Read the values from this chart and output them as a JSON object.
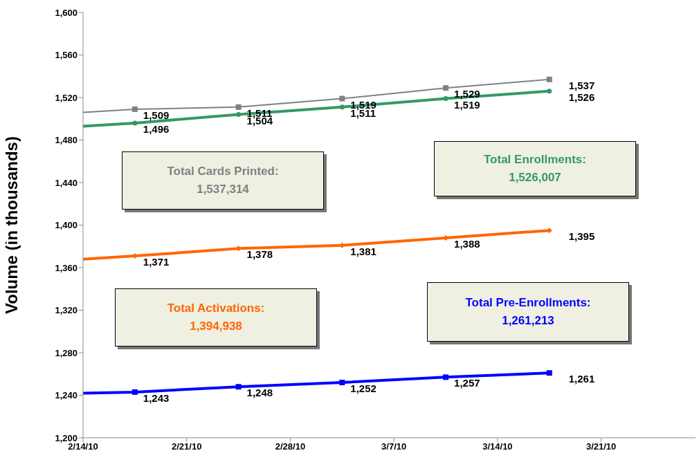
{
  "chart_data": {
    "type": "line",
    "ylabel": "Volume (in thousands)",
    "x": [
      "--02-14",
      "--02-17T12:00",
      "--02-24T12:00",
      "--03-03T12:00",
      "--03-10T12:00",
      "--03-17T12:00"
    ],
    "series": [
      {
        "color": "#808080",
        "marker": "square",
        "values": [
          1506,
          1509,
          1511,
          1519,
          1529,
          1537
        ],
        "value_labels": [
          null,
          "1,509",
          "1,511",
          "1,519",
          "1,529",
          "1,537"
        ]
      },
      {
        "color": "#339966",
        "marker": "circle",
        "values": [
          1493,
          1496,
          1504,
          1511,
          1519,
          1526
        ],
        "value_labels": [
          null,
          "1,496",
          "1,504",
          "1,511",
          "1,519",
          "1,526"
        ]
      },
      {
        "color": "#ff6600",
        "marker": "diamond",
        "values": [
          1368,
          1371,
          1378,
          1381,
          1388,
          1395
        ],
        "value_labels": [
          null,
          "1,371",
          "1,378",
          "1,381",
          "1,388",
          "1,395"
        ]
      },
      {
        "color": "#0000ff",
        "marker": "square",
        "values": [
          1242,
          1243,
          1248,
          1252,
          1257,
          1261
        ],
        "value_labels": [
          null,
          "1,243",
          "1,248",
          "1,252",
          "1,257",
          "1,261"
        ]
      }
    ],
    "annotations": [
      "Total Cards Printed:\n1,537,314",
      "Total Enrollments:\n1,526,007",
      "Total Activations:\n1,394,938",
      "Total Pre-Enrollments:\n1,261,213"
    ],
    "xlim": [
      "--02-14",
      "--03-27T09:00"
    ],
    "xticks": [
      {
        "value": "--02-14",
        "label": "2/14/10"
      },
      {
        "value": "--02-21",
        "label": "2/21/10"
      },
      {
        "value": "--02-28",
        "label": "2/28/10"
      },
      {
        "value": "--03-07",
        "label": "3/7/10"
      },
      {
        "value": "--03-14",
        "label": "3/14/10"
      },
      {
        "value": "--03-21",
        "label": "3/21/10"
      }
    ],
    "ylim": [
      1200,
      1600
    ],
    "yticks": [
      {
        "value": 1200,
        "label": "1,200"
      },
      {
        "value": 1240,
        "label": "1,240"
      },
      {
        "value": 1280,
        "label": "1,280"
      },
      {
        "value": 1320,
        "label": "1,320"
      },
      {
        "value": 1360,
        "label": "1,360"
      },
      {
        "value": 1400,
        "label": "1,400"
      },
      {
        "value": 1440,
        "label": "1,440"
      },
      {
        "value": 1480,
        "label": "1,480"
      },
      {
        "value": 1520,
        "label": "1,520"
      },
      {
        "value": 1560,
        "label": "1,560"
      },
      {
        "value": 1600,
        "label": "1,600"
      }
    ],
    "grid": false,
    "legend": false
  }
}
